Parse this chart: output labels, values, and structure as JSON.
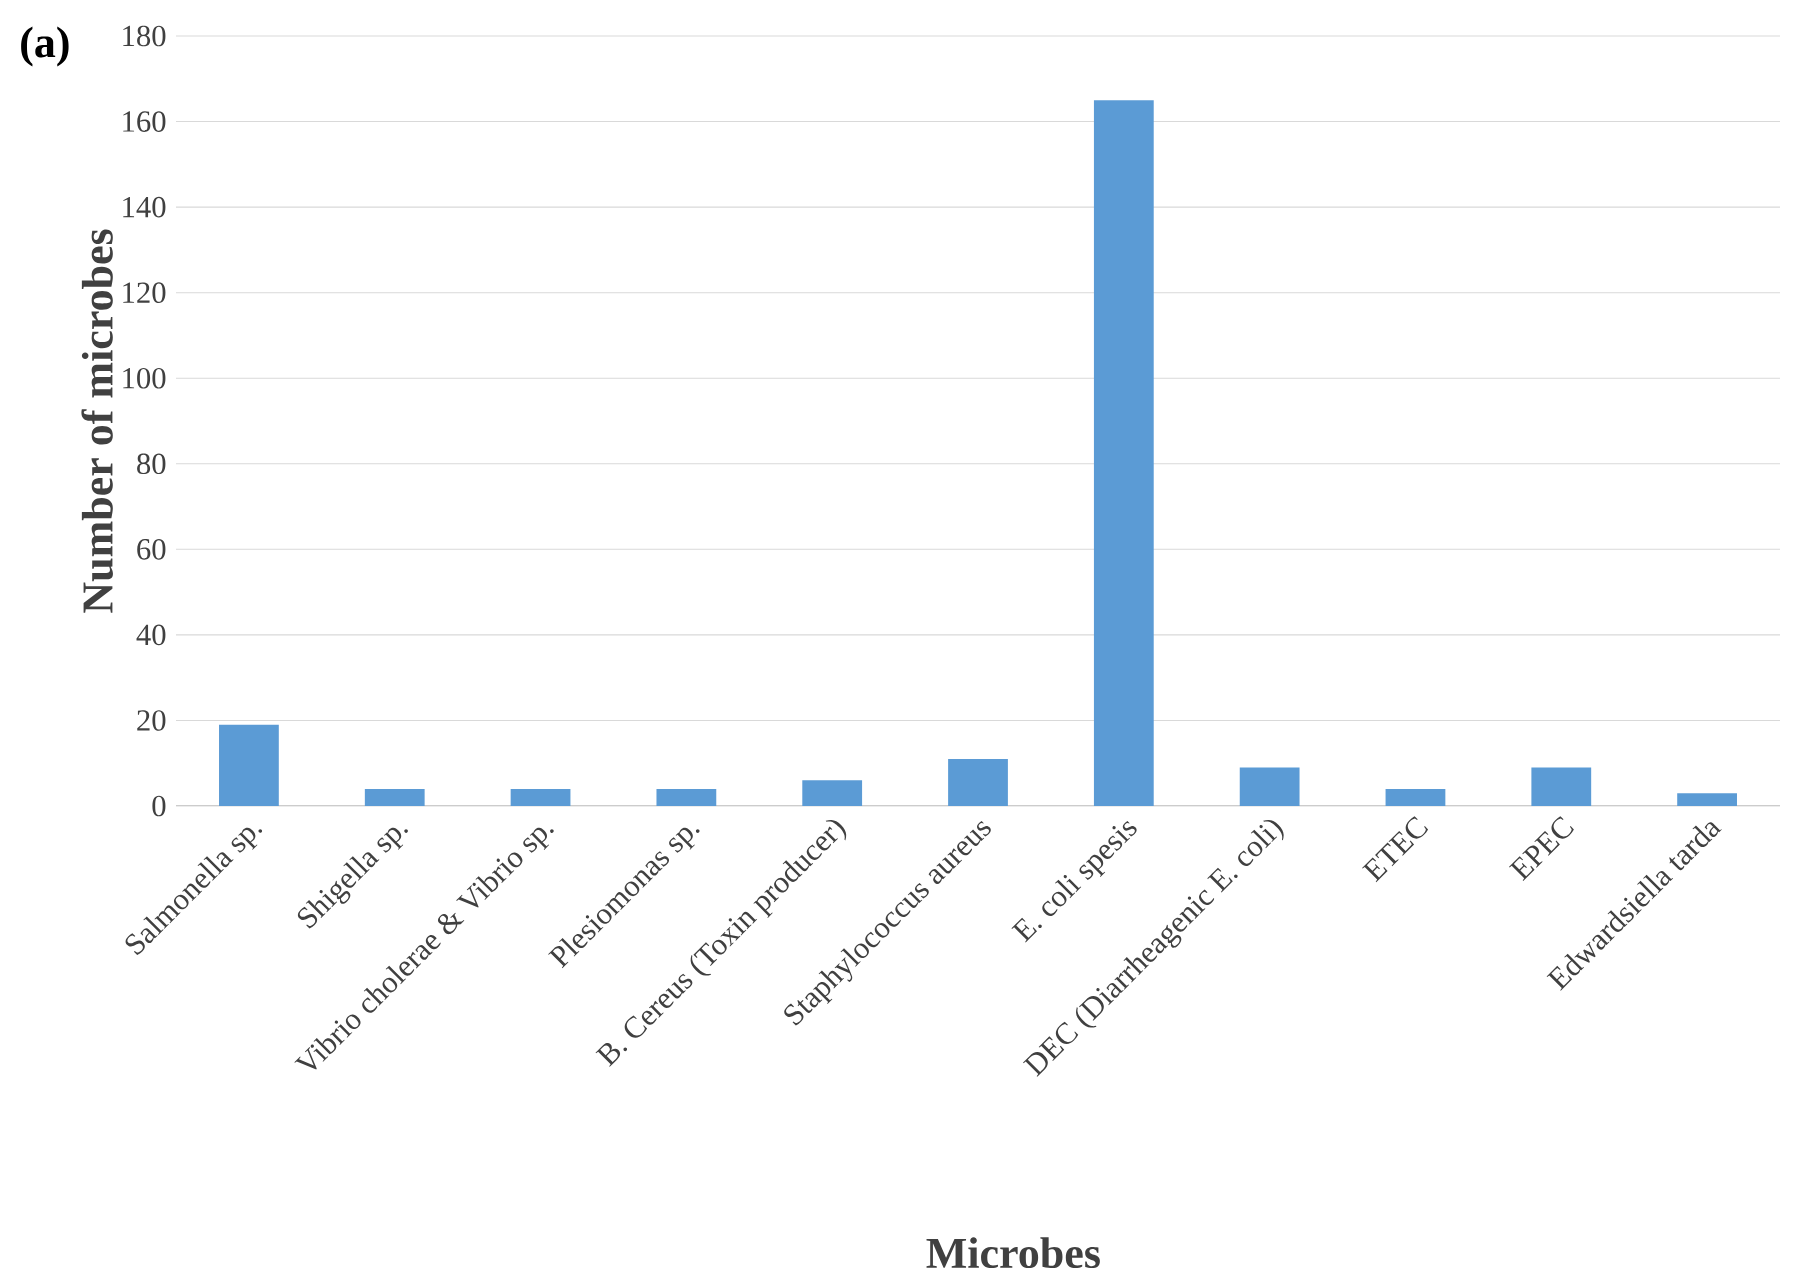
{
  "chart_data": {
    "type": "bar",
    "title": "(a)",
    "xlabel": "Microbes",
    "ylabel": "Number of microbes",
    "categories": [
      "Salmonella sp.",
      "Shigella sp.",
      "Vibrio cholerae & Vibrio sp.",
      "Plesiomonas sp.",
      "B. Cereus (Toxin producer)",
      "Staphylococcus aureus",
      "E. coli spesis",
      "DEC (Diarrheagenic E. coli)",
      "ETEC",
      "EPEC",
      "Edwardsiella tarda"
    ],
    "values": [
      19,
      4,
      4,
      4,
      6,
      11,
      165,
      9,
      4,
      9,
      3
    ],
    "color": "#5b9bd5",
    "ylim": [
      0,
      180
    ],
    "yticks": [
      0,
      20,
      40,
      60,
      80,
      100,
      120,
      140,
      160,
      180
    ],
    "grid": "y"
  }
}
